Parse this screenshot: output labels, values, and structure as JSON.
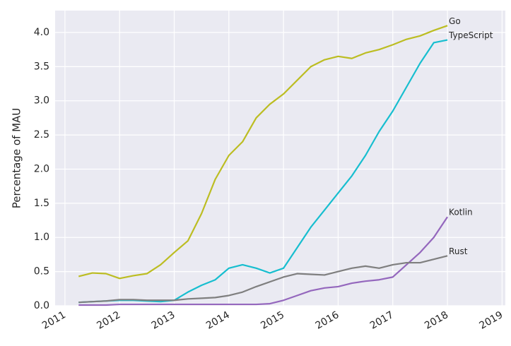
{
  "chart_data": {
    "type": "line",
    "ylabel": "Percentage of MAU",
    "x": [
      2011.25,
      2011.5,
      2011.75,
      2012,
      2012.25,
      2012.5,
      2012.75,
      2013,
      2013.25,
      2013.5,
      2013.75,
      2014,
      2014.25,
      2014.5,
      2014.75,
      2015,
      2015.25,
      2015.5,
      2015.75,
      2016,
      2016.25,
      2016.5,
      2016.75,
      2017,
      2017.25,
      2017.5,
      2017.75,
      2018
    ],
    "series": [
      {
        "name": "Go",
        "color": "#bcbd22",
        "values": [
          0.43,
          0.48,
          0.47,
          0.4,
          0.44,
          0.47,
          0.6,
          0.78,
          0.95,
          1.35,
          1.85,
          2.2,
          2.4,
          2.75,
          2.95,
          3.1,
          3.3,
          3.5,
          3.6,
          3.65,
          3.62,
          3.7,
          3.75,
          3.82,
          3.9,
          3.95,
          4.03,
          4.1
        ]
      },
      {
        "name": "TypeScript",
        "color": "#17becf",
        "values": [
          0.05,
          0.06,
          0.07,
          0.08,
          0.08,
          0.07,
          0.06,
          0.08,
          0.2,
          0.3,
          0.38,
          0.55,
          0.6,
          0.55,
          0.48,
          0.55,
          0.85,
          1.15,
          1.4,
          1.65,
          1.9,
          2.2,
          2.55,
          2.85,
          3.2,
          3.55,
          3.85,
          3.89
        ]
      },
      {
        "name": "Kotlin",
        "color": "#9467bd",
        "values": [
          0.01,
          0.01,
          0.01,
          0.02,
          0.02,
          0.02,
          0.02,
          0.02,
          0.02,
          0.02,
          0.02,
          0.02,
          0.02,
          0.02,
          0.03,
          0.08,
          0.15,
          0.22,
          0.26,
          0.28,
          0.33,
          0.36,
          0.38,
          0.42,
          0.6,
          0.78,
          1.0,
          1.3
        ]
      },
      {
        "name": "Rust",
        "color": "#7f7f7f",
        "values": [
          0.05,
          0.06,
          0.07,
          0.09,
          0.09,
          0.08,
          0.08,
          0.08,
          0.1,
          0.11,
          0.12,
          0.15,
          0.2,
          0.28,
          0.35,
          0.42,
          0.47,
          0.46,
          0.45,
          0.5,
          0.55,
          0.58,
          0.55,
          0.6,
          0.63,
          0.63,
          0.68,
          0.73
        ]
      }
    ],
    "xlim": [
      2010.82,
      2019.06
    ],
    "xticks": [
      2011,
      2012,
      2013,
      2014,
      2015,
      2016,
      2017,
      2018,
      2019
    ],
    "ylim": [
      0,
      4.32
    ],
    "yticks": [
      {
        "value": 0,
        "label": "0.0"
      },
      {
        "value": 0.5,
        "label": "0.5"
      },
      {
        "value": 1,
        "label": "1.0"
      },
      {
        "value": 1.5,
        "label": "1.5"
      },
      {
        "value": 2,
        "label": "2.0"
      },
      {
        "value": 2.5,
        "label": "2.5"
      },
      {
        "value": 3,
        "label": "3.0"
      },
      {
        "value": 3.5,
        "label": "3.5"
      },
      {
        "value": 4,
        "label": "4.0"
      }
    ],
    "grid": true,
    "background": "#eaeaf2"
  }
}
